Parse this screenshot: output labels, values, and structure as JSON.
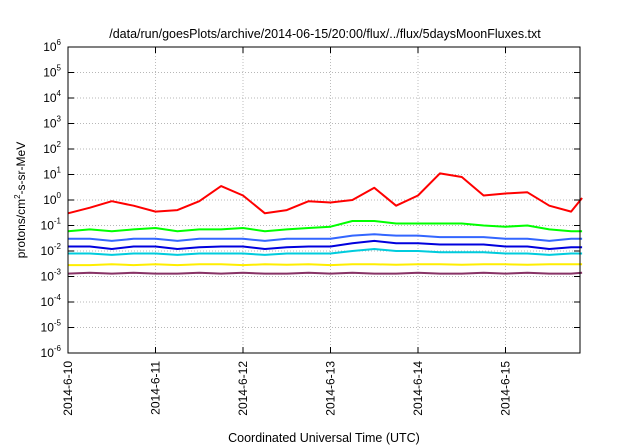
{
  "chart_data": {
    "type": "line",
    "title": "/data/run/goesPlots/archive/2014-06-15/20:00/flux/../flux/5daysMoonFluxes.txt",
    "xlabel": "Coordinated Universal Time (UTC)",
    "ylabel": {
      "base": "protons/cm",
      "sup": "2",
      "rest": "-s-sr-MeV"
    },
    "y_scale": "log",
    "ylim": [
      1e-06,
      1000000.0
    ],
    "xlim": [
      "2014-6-10",
      "2014-6-15 21:00"
    ],
    "grid": true,
    "legend": "none",
    "x_ticks": [
      "2014-6-10",
      "2014-6-11",
      "2014-6-12",
      "2014-6-13",
      "2014-6-14",
      "2014-6-15"
    ],
    "y_ticks": [
      {
        "base": "10",
        "exp": "-6",
        "value": 1e-06
      },
      {
        "base": "10",
        "exp": "-5",
        "value": 1e-05
      },
      {
        "base": "10",
        "exp": "-4",
        "value": 0.0001
      },
      {
        "base": "10",
        "exp": "-3",
        "value": 0.001
      },
      {
        "base": "10",
        "exp": "-2",
        "value": 0.01
      },
      {
        "base": "10",
        "exp": "-1",
        "value": 0.1
      },
      {
        "base": "10",
        "exp": "0",
        "value": 1
      },
      {
        "base": "10",
        "exp": "1",
        "value": 10
      },
      {
        "base": "10",
        "exp": "2",
        "value": 100
      },
      {
        "base": "10",
        "exp": "3",
        "value": 1000
      },
      {
        "base": "10",
        "exp": "4",
        "value": 10000
      },
      {
        "base": "10",
        "exp": "5",
        "value": 100000
      },
      {
        "base": "10",
        "exp": "6",
        "value": 1000000
      }
    ],
    "x_dates": [
      "2014-6-10 00:00",
      "2014-6-10 06:00",
      "2014-6-10 12:00",
      "2014-6-10 18:00",
      "2014-6-11 00:00",
      "2014-6-11 06:00",
      "2014-6-11 12:00",
      "2014-6-11 18:00",
      "2014-6-12 00:00",
      "2014-6-12 06:00",
      "2014-6-12 12:00",
      "2014-6-12 18:00",
      "2014-6-13 00:00",
      "2014-6-13 06:00",
      "2014-6-13 12:00",
      "2014-6-13 18:00",
      "2014-6-14 00:00",
      "2014-6-14 06:00",
      "2014-6-14 12:00",
      "2014-6-14 18:00",
      "2014-6-15 00:00",
      "2014-6-15 06:00",
      "2014-6-15 12:00",
      "2014-6-15 18:00",
      "2014-6-15 21:00"
    ],
    "series": [
      {
        "color": "#ff0000",
        "values": [
          0.3,
          0.5,
          0.9,
          0.6,
          0.35,
          0.4,
          0.9,
          3.5,
          1.5,
          0.3,
          0.4,
          0.9,
          0.8,
          1.0,
          3.0,
          0.6,
          1.5,
          11.0,
          8.0,
          1.5,
          1.8,
          2.0,
          0.6,
          0.35,
          1.2
        ]
      },
      {
        "color": "#00ff00",
        "values": [
          0.06,
          0.07,
          0.06,
          0.07,
          0.08,
          0.06,
          0.07,
          0.07,
          0.08,
          0.06,
          0.07,
          0.08,
          0.09,
          0.15,
          0.15,
          0.12,
          0.12,
          0.12,
          0.12,
          0.1,
          0.09,
          0.1,
          0.07,
          0.06,
          0.06
        ]
      },
      {
        "color": "#3366ff",
        "values": [
          0.03,
          0.03,
          0.025,
          0.03,
          0.03,
          0.025,
          0.03,
          0.03,
          0.03,
          0.025,
          0.03,
          0.03,
          0.03,
          0.04,
          0.045,
          0.04,
          0.04,
          0.035,
          0.035,
          0.035,
          0.03,
          0.03,
          0.025,
          0.03,
          0.03
        ]
      },
      {
        "color": "#0000dd",
        "values": [
          0.015,
          0.015,
          0.012,
          0.015,
          0.015,
          0.012,
          0.014,
          0.015,
          0.015,
          0.012,
          0.014,
          0.015,
          0.015,
          0.02,
          0.025,
          0.02,
          0.02,
          0.018,
          0.018,
          0.018,
          0.015,
          0.015,
          0.012,
          0.014,
          0.014
        ]
      },
      {
        "color": "#00ccdd",
        "values": [
          0.008,
          0.008,
          0.007,
          0.008,
          0.008,
          0.007,
          0.008,
          0.008,
          0.008,
          0.007,
          0.008,
          0.008,
          0.008,
          0.01,
          0.012,
          0.01,
          0.01,
          0.009,
          0.009,
          0.009,
          0.008,
          0.008,
          0.007,
          0.008,
          0.008
        ]
      },
      {
        "color": "#ffee00",
        "values": [
          0.0028,
          0.0028,
          0.003,
          0.0028,
          0.003,
          0.0028,
          0.003,
          0.003,
          0.0028,
          0.003,
          0.0029,
          0.003,
          0.0028,
          0.003,
          0.003,
          0.0029,
          0.003,
          0.003,
          0.0029,
          0.003,
          0.003,
          0.0029,
          0.003,
          0.003,
          0.003
        ]
      },
      {
        "color": "#883366",
        "values": [
          0.0013,
          0.0014,
          0.0013,
          0.0014,
          0.0013,
          0.0013,
          0.0014,
          0.0013,
          0.0014,
          0.0013,
          0.0013,
          0.0014,
          0.0013,
          0.0014,
          0.0013,
          0.0013,
          0.0014,
          0.0013,
          0.0013,
          0.0014,
          0.0013,
          0.0014,
          0.0013,
          0.0013,
          0.0014
        ]
      }
    ]
  }
}
